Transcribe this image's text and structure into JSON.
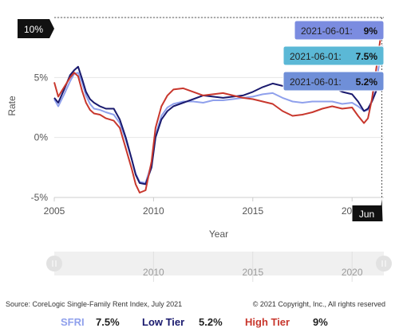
{
  "chart_data": {
    "type": "line",
    "xlabel": "Year",
    "ylabel": "Rate",
    "xlim": [
      2005.0,
      2021.6
    ],
    "ylim": [
      -5,
      10
    ],
    "y_ticks": [
      "-5%",
      "0%",
      "5%",
      "10%"
    ],
    "x_ticks": [
      "2005",
      "2010",
      "2015",
      "2020"
    ],
    "navigator_ticks": [
      "2010",
      "2015",
      "2020"
    ],
    "crosshair_x_label": "Jun",
    "crosshair_y_label": "10%",
    "grid": true,
    "series": [
      {
        "name": "SFRI",
        "color": "#8FA0EC",
        "tooltip": "2021-06-01:",
        "tooltip_value": "7.5%",
        "tooltip_bg": "#5BB8D6",
        "legend_value": "7.5%",
        "points": [
          [
            2005.0,
            3.2
          ],
          [
            2005.2,
            2.6
          ],
          [
            2005.5,
            3.6
          ],
          [
            2005.8,
            4.7
          ],
          [
            2006.0,
            5.3
          ],
          [
            2006.2,
            5.4
          ],
          [
            2006.4,
            4.6
          ],
          [
            2006.6,
            3.5
          ],
          [
            2006.8,
            2.8
          ],
          [
            2007.0,
            2.4
          ],
          [
            2007.3,
            2.3
          ],
          [
            2007.6,
            2.1
          ],
          [
            2008.0,
            1.9
          ],
          [
            2008.3,
            1.2
          ],
          [
            2008.6,
            -0.2
          ],
          [
            2008.9,
            -1.8
          ],
          [
            2009.1,
            -3.0
          ],
          [
            2009.3,
            -3.7
          ],
          [
            2009.6,
            -3.8
          ],
          [
            2009.9,
            -2.2
          ],
          [
            2010.1,
            0.2
          ],
          [
            2010.4,
            1.8
          ],
          [
            2010.7,
            2.5
          ],
          [
            2011.0,
            2.8
          ],
          [
            2011.5,
            3.0
          ],
          [
            2012.0,
            3.0
          ],
          [
            2012.5,
            2.9
          ],
          [
            2013.0,
            3.1
          ],
          [
            2013.5,
            3.1
          ],
          [
            2014.0,
            3.2
          ],
          [
            2014.5,
            3.3
          ],
          [
            2015.0,
            3.4
          ],
          [
            2015.5,
            3.6
          ],
          [
            2016.0,
            3.7
          ],
          [
            2016.5,
            3.3
          ],
          [
            2017.0,
            3.0
          ],
          [
            2017.5,
            2.9
          ],
          [
            2018.0,
            3.0
          ],
          [
            2018.5,
            3.0
          ],
          [
            2019.0,
            3.0
          ],
          [
            2019.5,
            2.8
          ],
          [
            2020.0,
            2.9
          ],
          [
            2020.3,
            2.6
          ],
          [
            2020.6,
            2.2
          ],
          [
            2020.8,
            2.3
          ],
          [
            2021.0,
            3.1
          ],
          [
            2021.2,
            4.5
          ],
          [
            2021.4,
            6.4
          ],
          [
            2021.5,
            7.5
          ]
        ]
      },
      {
        "name": "Low Tier",
        "color": "#1A1A6E",
        "tooltip": "2021-06-01:",
        "tooltip_value": "5.2%",
        "tooltip_bg": "#6F8FD8",
        "legend_value": "5.2%",
        "points": [
          [
            2005.0,
            3.3
          ],
          [
            2005.2,
            2.9
          ],
          [
            2005.5,
            4.0
          ],
          [
            2005.8,
            5.2
          ],
          [
            2006.0,
            5.6
          ],
          [
            2006.2,
            5.9
          ],
          [
            2006.4,
            4.9
          ],
          [
            2006.6,
            3.8
          ],
          [
            2006.8,
            3.2
          ],
          [
            2007.0,
            2.9
          ],
          [
            2007.3,
            2.6
          ],
          [
            2007.6,
            2.4
          ],
          [
            2008.0,
            2.4
          ],
          [
            2008.3,
            1.5
          ],
          [
            2008.6,
            0.0
          ],
          [
            2008.9,
            -1.8
          ],
          [
            2009.1,
            -3.1
          ],
          [
            2009.3,
            -3.8
          ],
          [
            2009.6,
            -3.9
          ],
          [
            2009.9,
            -2.5
          ],
          [
            2010.1,
            0.0
          ],
          [
            2010.4,
            1.5
          ],
          [
            2010.7,
            2.2
          ],
          [
            2011.0,
            2.6
          ],
          [
            2011.5,
            2.9
          ],
          [
            2012.0,
            3.2
          ],
          [
            2012.5,
            3.5
          ],
          [
            2013.0,
            3.4
          ],
          [
            2013.5,
            3.3
          ],
          [
            2014.0,
            3.4
          ],
          [
            2014.5,
            3.5
          ],
          [
            2015.0,
            3.8
          ],
          [
            2015.5,
            4.2
          ],
          [
            2016.0,
            4.5
          ],
          [
            2016.5,
            4.3
          ],
          [
            2017.0,
            4.2
          ],
          [
            2017.5,
            4.4
          ],
          [
            2018.0,
            4.3
          ],
          [
            2018.5,
            4.5
          ],
          [
            2019.0,
            4.2
          ],
          [
            2019.5,
            3.8
          ],
          [
            2020.0,
            3.6
          ],
          [
            2020.3,
            3.0
          ],
          [
            2020.6,
            2.2
          ],
          [
            2020.8,
            2.4
          ],
          [
            2021.0,
            3.0
          ],
          [
            2021.2,
            3.8
          ],
          [
            2021.4,
            4.7
          ],
          [
            2021.5,
            5.2
          ]
        ]
      },
      {
        "name": "High Tier",
        "color": "#C8372D",
        "tooltip": "2021-06-01:",
        "tooltip_value": "9%",
        "tooltip_bg": "#7B8CE0",
        "legend_value": "9%",
        "points": [
          [
            2005.0,
            4.6
          ],
          [
            2005.2,
            3.4
          ],
          [
            2005.5,
            4.2
          ],
          [
            2005.8,
            5.0
          ],
          [
            2006.0,
            5.4
          ],
          [
            2006.2,
            5.1
          ],
          [
            2006.4,
            3.9
          ],
          [
            2006.6,
            2.9
          ],
          [
            2006.8,
            2.3
          ],
          [
            2007.0,
            2.0
          ],
          [
            2007.3,
            1.9
          ],
          [
            2007.6,
            1.6
          ],
          [
            2008.0,
            1.4
          ],
          [
            2008.3,
            0.8
          ],
          [
            2008.6,
            -0.9
          ],
          [
            2008.9,
            -2.6
          ],
          [
            2009.1,
            -3.9
          ],
          [
            2009.3,
            -4.6
          ],
          [
            2009.6,
            -4.4
          ],
          [
            2009.9,
            -2.0
          ],
          [
            2010.1,
            0.8
          ],
          [
            2010.4,
            2.6
          ],
          [
            2010.7,
            3.5
          ],
          [
            2011.0,
            4.0
          ],
          [
            2011.5,
            4.1
          ],
          [
            2012.0,
            3.8
          ],
          [
            2012.5,
            3.5
          ],
          [
            2013.0,
            3.6
          ],
          [
            2013.5,
            3.7
          ],
          [
            2014.0,
            3.5
          ],
          [
            2014.5,
            3.3
          ],
          [
            2015.0,
            3.2
          ],
          [
            2015.5,
            3.0
          ],
          [
            2016.0,
            2.8
          ],
          [
            2016.5,
            2.2
          ],
          [
            2017.0,
            1.8
          ],
          [
            2017.5,
            1.9
          ],
          [
            2018.0,
            2.1
          ],
          [
            2018.5,
            2.4
          ],
          [
            2019.0,
            2.6
          ],
          [
            2019.5,
            2.4
          ],
          [
            2020.0,
            2.5
          ],
          [
            2020.3,
            1.8
          ],
          [
            2020.6,
            1.2
          ],
          [
            2020.8,
            1.6
          ],
          [
            2021.0,
            3.2
          ],
          [
            2021.2,
            5.5
          ],
          [
            2021.4,
            7.9
          ],
          [
            2021.5,
            9.0
          ]
        ]
      }
    ]
  },
  "footer": {
    "source": "Source: CoreLogic Single-Family Rent Index, July 2021",
    "copyright": "© 2021 Copyright, Inc., All rights reserved"
  }
}
